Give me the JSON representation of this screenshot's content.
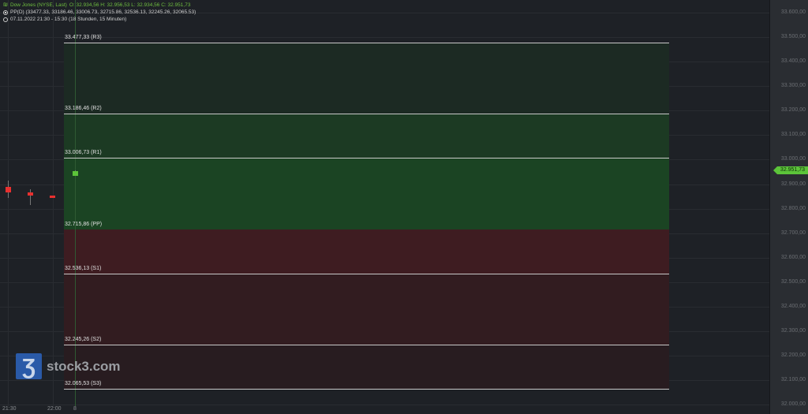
{
  "header": {
    "instrument": "Dow Jones (NYSE, Last)",
    "ohlc": "O: 32.934,56  H: 32.956,53  L: 32.934,56  C: 32.951,73",
    "indicator": "PP(D)  (33477.33, 33186.46, 33006.73, 32715.86, 32536.13, 32245.26, 32065.53)",
    "period": "07.11.2022 21:30 - 15:30   (18 Stunden, 15 Minuten)",
    "icons": [
      "chart-icon",
      "indicator-dot-icon",
      "clock-icon"
    ]
  },
  "levels": [
    {
      "value": 33477.33,
      "label": "33.477,33 (R3)"
    },
    {
      "value": 33186.46,
      "label": "33.186,46 (R2)"
    },
    {
      "value": 33006.73,
      "label": "33.006,73 (R1)"
    },
    {
      "value": 32715.86,
      "label": "32.715,86 (PP)"
    },
    {
      "value": 32536.13,
      "label": "32.536,13 (S1)"
    },
    {
      "value": 32245.26,
      "label": "32.245,26 (S2)"
    },
    {
      "value": 32065.53,
      "label": "32.065,53 (S3)"
    }
  ],
  "zone_colors": [
    "#1c2a23",
    "#1c3a23",
    "#1b4423",
    "#3e1c21",
    "#321c20",
    "#281c20"
  ],
  "price_axis": {
    "ticks": [
      "33.600,00",
      "33.500,00",
      "33.400,00",
      "33.300,00",
      "33.200,00",
      "33.100,00",
      "33.000,00",
      "32.900,00",
      "32.800,00",
      "32.700,00",
      "32.600,00",
      "32.500,00",
      "32.400,00",
      "32.300,00",
      "32.200,00",
      "32.100,00",
      "32.000,00"
    ],
    "tick_values": [
      33600,
      33500,
      33400,
      33300,
      33200,
      33100,
      33000,
      32900,
      32800,
      32700,
      32600,
      32500,
      32400,
      32300,
      32200,
      32100,
      32000
    ],
    "last_price": "32.951,73",
    "last_color": "#5cc43a"
  },
  "time_axis": [
    "21:30",
    "22:00",
    "8"
  ],
  "candles": [
    {
      "o": 32890,
      "h": 32915,
      "l": 32845,
      "c": 32865,
      "color": "#e8302f"
    },
    {
      "o": 32865,
      "h": 32880,
      "l": 32815,
      "c": 32855,
      "color": "#e8302f"
    },
    {
      "o": 32855,
      "h": 32855,
      "l": 32845,
      "c": 32848,
      "color": "#e8302f"
    },
    {
      "o": 32934.56,
      "h": 32956.53,
      "l": 32934.56,
      "c": 32951.73,
      "color": "#5cc43a"
    }
  ],
  "logo": {
    "mark": "3",
    "text": "stock3.com"
  }
}
